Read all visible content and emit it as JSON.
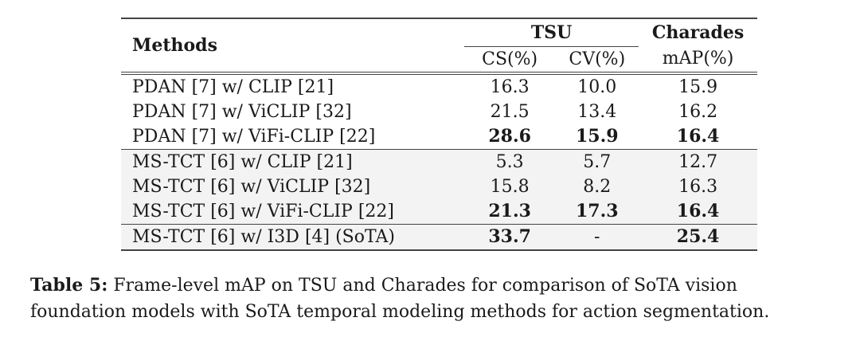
{
  "table": {
    "header": {
      "methods": "Methods",
      "tsu": "TSU",
      "charades": "Charades",
      "cs": "CS(%)",
      "cv": "CV(%)",
      "map": "mAP(%)"
    },
    "groups": [
      {
        "rows": [
          {
            "method": "PDAN [7] w/ CLIP [21]",
            "cs": "16.3",
            "cv": "10.0",
            "map": "15.9",
            "bold": [
              false,
              false,
              false
            ]
          },
          {
            "method": "PDAN [7] w/ ViCLIP [32]",
            "cs": "21.5",
            "cv": "13.4",
            "map": "16.2",
            "bold": [
              false,
              false,
              false
            ]
          },
          {
            "method": "PDAN [7] w/ ViFi-CLIP [22]",
            "cs": "28.6",
            "cv": "15.9",
            "map": "16.4",
            "bold": [
              true,
              true,
              true
            ]
          }
        ]
      },
      {
        "rows": [
          {
            "method": "MS-TCT [6] w/ CLIP [21]",
            "cs": "5.3",
            "cv": "5.7",
            "map": "12.7",
            "bold": [
              false,
              false,
              false
            ]
          },
          {
            "method": "MS-TCT [6] w/ ViCLIP [32]",
            "cs": "15.8",
            "cv": "8.2",
            "map": "16.3",
            "bold": [
              false,
              false,
              false
            ]
          },
          {
            "method": "MS-TCT [6] w/ ViFi-CLIP [22]",
            "cs": "21.3",
            "cv": "17.3",
            "map": "16.4",
            "bold": [
              true,
              true,
              true
            ]
          }
        ]
      },
      {
        "rows": [
          {
            "method": "MS-TCT [6] w/ I3D [4] (SoTA)",
            "cs": "33.7",
            "cv": "-",
            "map": "25.4",
            "bold": [
              true,
              false,
              true
            ]
          }
        ]
      }
    ]
  },
  "caption": {
    "label": "Table 5:",
    "text": "Frame-level mAP on TSU and Charades for comparison of SoTA vision foundation models with SoTA temporal modeling methods for action segmentation."
  }
}
